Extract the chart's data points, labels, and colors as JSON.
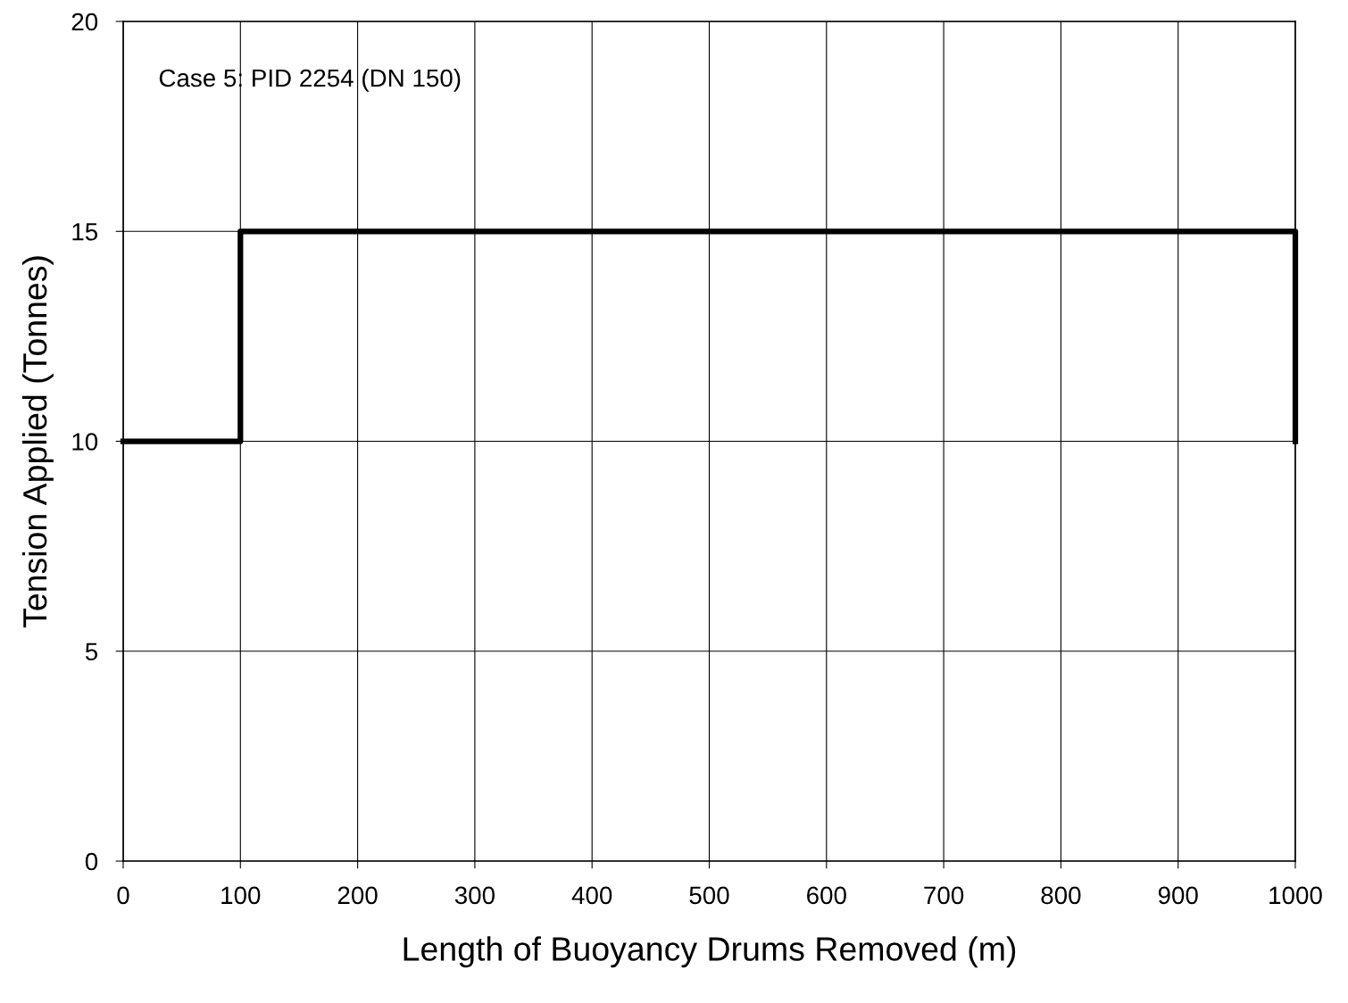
{
  "chart_data": {
    "type": "line",
    "xlabel": "Length of Buoyancy Drums Removed (m)",
    "ylabel": "Tension Applied (Tonnes)",
    "annotations": [
      "Case 5: PID 2254 (DN 150)"
    ],
    "x": [
      0,
      100,
      100,
      1000,
      1000
    ],
    "series": [
      {
        "color": "#000000",
        "values": [
          10,
          10,
          15,
          15,
          10
        ]
      }
    ],
    "xlim": [
      0,
      1000
    ],
    "xticks": [
      0,
      100,
      200,
      300,
      400,
      500,
      600,
      700,
      800,
      900,
      1000
    ],
    "ylim": [
      0,
      20
    ],
    "yticks": [
      0,
      5,
      10,
      15,
      20
    ],
    "grid": true,
    "marker": "none",
    "line_style": "solid"
  }
}
